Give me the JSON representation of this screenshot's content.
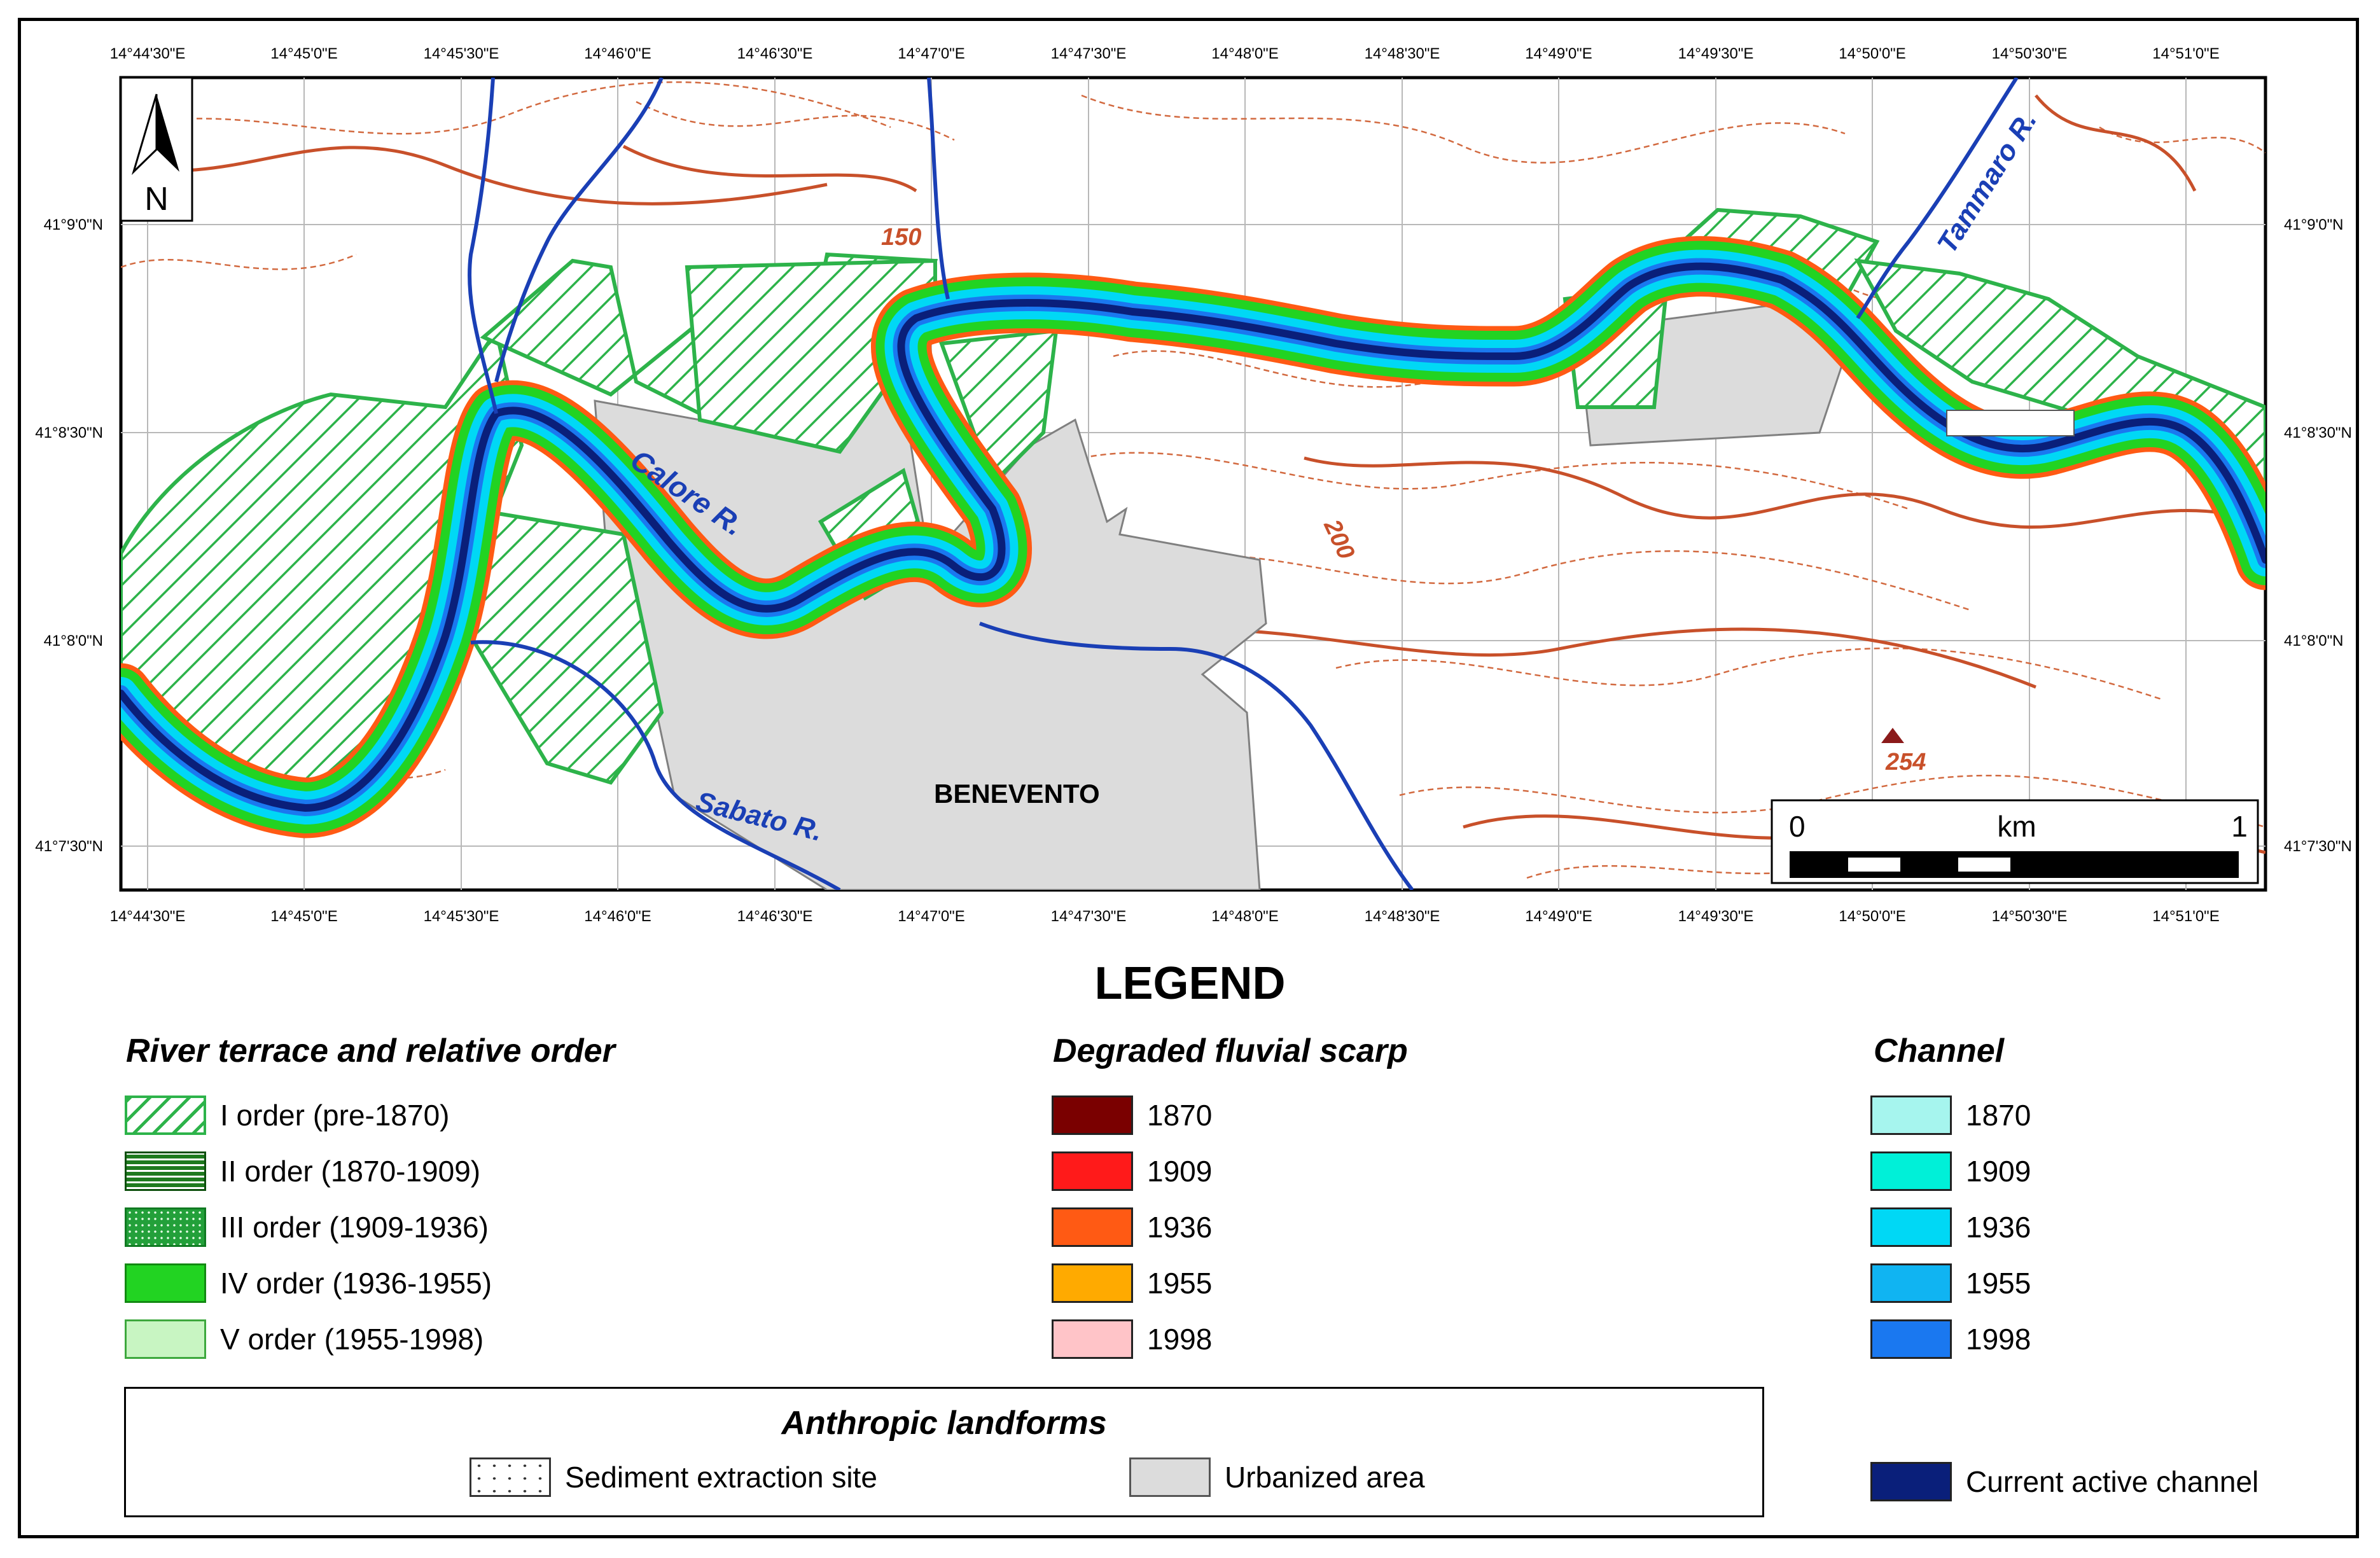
{
  "map": {
    "north_label": "N",
    "lon_ticks": [
      "14°44'30\"E",
      "14°45'0\"E",
      "14°45'30\"E",
      "14°46'0\"E",
      "14°46'30\"E",
      "14°47'0\"E",
      "14°47'30\"E",
      "14°48'0\"E",
      "14°48'30\"E",
      "14°49'0\"E",
      "14°49'30\"E",
      "14°50'0\"E",
      "14°50'30\"E",
      "14°51'0\"E"
    ],
    "lat_ticks": [
      "41°9'0\"N",
      "41°8'30\"N",
      "41°8'0\"N",
      "41°7'30\"N"
    ],
    "rivers": {
      "calore": "Calore R.",
      "sabato": "Sabato R.",
      "tammaro": "Tammaro R."
    },
    "city": "BENEVENTO",
    "contours": {
      "c150": "150",
      "c200": "200"
    },
    "peak": "254",
    "scale": {
      "start": "0",
      "unit": "km",
      "end": "1"
    },
    "colors": {
      "contour": "#c8502a",
      "river": "#1a3fb5",
      "terrace_I": "#2db34a",
      "urban": "#dcdcdc",
      "active_channel": "#0a1f7a"
    }
  },
  "legend": {
    "title": "LEGEND",
    "terrace": {
      "title": "River terrace and relative order",
      "items": [
        "I order (pre-1870)",
        "II order (1870-1909)",
        "III order (1909-1936)",
        "IV order (1936-1955)",
        "V order (1955-1998)"
      ]
    },
    "scarp": {
      "title": "Degraded fluvial scarp",
      "items": [
        {
          "label": "1870",
          "color": "#7a0000"
        },
        {
          "label": "1909",
          "color": "#ff1a1a"
        },
        {
          "label": "1936",
          "color": "#ff5a14"
        },
        {
          "label": "1955",
          "color": "#ffaa00"
        },
        {
          "label": "1998",
          "color": "#ffc4c8"
        }
      ]
    },
    "channel": {
      "title": "Channel",
      "items": [
        {
          "label": "1870",
          "color": "#a6f5ee"
        },
        {
          "label": "1909",
          "color": "#00f0d8"
        },
        {
          "label": "1936",
          "color": "#00d8f5"
        },
        {
          "label": "1955",
          "color": "#10b4f2"
        },
        {
          "label": "1998",
          "color": "#1a78f0"
        }
      ]
    },
    "anthropic": {
      "title": "Anthropic landforms",
      "sediment": "Sediment extraction site",
      "urban": "Urbanized area"
    },
    "active": {
      "label": "Current active channel",
      "color": "#0a1f7a"
    }
  }
}
